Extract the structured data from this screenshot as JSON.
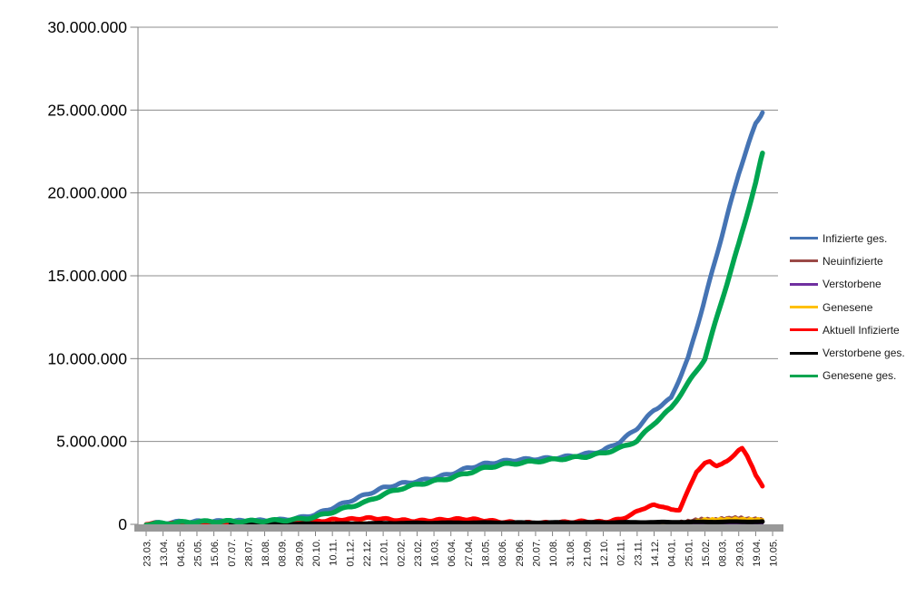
{
  "chart_data": {
    "type": "line",
    "title": "",
    "xlabel": "",
    "ylabel": "",
    "unit": "persons, values in millions",
    "ylim": [
      0,
      30000000
    ],
    "grid": "horizontal",
    "legend_position": "right",
    "y_tick_labels": [
      "30.000.000",
      "25.000.000",
      "20.000.000",
      "15.000.000",
      "10.000.000",
      "5.000.000",
      "0"
    ],
    "categories": [
      "23.03.",
      "13.04.",
      "04.05.",
      "25.05.",
      "15.06.",
      "07.07.",
      "28.07.",
      "18.08.",
      "08.09.",
      "29.09.",
      "20.10.",
      "10.11.",
      "01.12.",
      "22.12.",
      "12.01.",
      "02.02.",
      "23.02.",
      "16.03.",
      "06.04.",
      "27.04.",
      "18.05.",
      "08.06.",
      "29.06.",
      "20.07.",
      "10.08.",
      "31.08.",
      "21.09.",
      "12.10.",
      "02.11.",
      "23.11.",
      "14.12.",
      "04.01.",
      "25.01.",
      "15.02.",
      "08.03.",
      "29.03.",
      "19.04.",
      "10.05."
    ],
    "series": [
      {
        "key": "infizierte",
        "name": "Infizierte ges.",
        "color": "#4574B4",
        "points": [
          [
            0,
            0.05
          ],
          [
            1,
            0.09
          ],
          [
            2,
            0.15
          ],
          [
            3,
            0.17
          ],
          [
            4,
            0.18
          ],
          [
            5,
            0.19
          ],
          [
            6,
            0.21
          ],
          [
            7,
            0.23
          ],
          [
            8,
            0.27
          ],
          [
            9,
            0.38
          ],
          [
            10,
            0.6
          ],
          [
            11,
            1.0
          ],
          [
            12,
            1.4
          ],
          [
            13,
            1.8
          ],
          [
            14,
            2.2
          ],
          [
            15,
            2.45
          ],
          [
            16,
            2.6
          ],
          [
            17,
            2.8
          ],
          [
            18,
            3.05
          ],
          [
            19,
            3.4
          ],
          [
            20,
            3.65
          ],
          [
            21,
            3.8
          ],
          [
            22,
            3.9
          ],
          [
            23,
            3.95
          ],
          [
            24,
            4.0
          ],
          [
            25,
            4.1
          ],
          [
            26,
            4.25
          ],
          [
            27,
            4.45
          ],
          [
            28,
            5.0
          ],
          [
            29,
            5.8
          ],
          [
            30,
            6.9
          ],
          [
            31,
            7.6
          ],
          [
            32,
            10.0
          ],
          [
            33,
            13.6
          ],
          [
            34,
            17.4
          ],
          [
            35,
            21.2
          ],
          [
            36,
            24.2
          ],
          [
            36.4,
            24.85
          ]
        ]
      },
      {
        "key": "neuinfizierte",
        "name": "Neuinfizierte",
        "color": "#9B4A47",
        "points": [
          [
            0,
            0.01
          ],
          [
            4,
            0.01
          ],
          [
            8,
            0.015
          ],
          [
            10,
            0.04
          ],
          [
            12,
            0.06
          ],
          [
            13,
            0.065
          ],
          [
            14,
            0.05
          ],
          [
            16,
            0.03
          ],
          [
            18,
            0.05
          ],
          [
            19,
            0.055
          ],
          [
            20,
            0.04
          ],
          [
            22,
            0.02
          ],
          [
            24,
            0.025
          ],
          [
            26,
            0.04
          ],
          [
            28,
            0.08
          ],
          [
            29,
            0.1
          ],
          [
            30,
            0.13
          ],
          [
            31,
            0.09
          ],
          [
            32,
            0.2
          ],
          [
            32.5,
            0.3
          ],
          [
            33,
            0.34
          ],
          [
            33.5,
            0.3
          ],
          [
            34,
            0.36
          ],
          [
            34.5,
            0.41
          ],
          [
            35,
            0.42
          ],
          [
            35.3,
            0.38
          ],
          [
            35.7,
            0.34
          ],
          [
            36,
            0.35
          ],
          [
            36.4,
            0.3
          ]
        ]
      },
      {
        "key": "verstorbene",
        "name": "Verstorbene",
        "color": "#7030A0",
        "points": [
          [
            0,
            0.002
          ],
          [
            36.4,
            0.004
          ]
        ]
      },
      {
        "key": "genesene",
        "name": "Genesene",
        "color": "#FFC000",
        "points": [
          [
            0,
            0.01
          ],
          [
            4,
            0.01
          ],
          [
            8,
            0.015
          ],
          [
            10,
            0.03
          ],
          [
            12,
            0.05
          ],
          [
            13,
            0.055
          ],
          [
            14,
            0.045
          ],
          [
            16,
            0.03
          ],
          [
            18,
            0.045
          ],
          [
            19,
            0.05
          ],
          [
            20,
            0.035
          ],
          [
            22,
            0.02
          ],
          [
            24,
            0.02
          ],
          [
            26,
            0.03
          ],
          [
            28,
            0.05
          ],
          [
            29,
            0.08
          ],
          [
            30,
            0.1
          ],
          [
            31,
            0.09
          ],
          [
            32,
            0.12
          ],
          [
            33,
            0.28
          ],
          [
            34,
            0.3
          ],
          [
            34.5,
            0.32
          ],
          [
            35,
            0.33
          ],
          [
            35.5,
            0.3
          ],
          [
            36,
            0.3
          ],
          [
            36.4,
            0.27
          ]
        ]
      },
      {
        "key": "aktuell",
        "name": "Aktuell Infizierte",
        "color": "#FF0000",
        "points": [
          [
            0,
            0.05
          ],
          [
            0.5,
            0.05
          ],
          [
            1,
            0.04
          ],
          [
            2,
            0.03
          ],
          [
            3,
            0.02
          ],
          [
            4,
            0.015
          ],
          [
            5,
            0.015
          ],
          [
            6,
            0.02
          ],
          [
            7,
            0.03
          ],
          [
            8,
            0.05
          ],
          [
            9,
            0.09
          ],
          [
            10,
            0.16
          ],
          [
            11,
            0.28
          ],
          [
            12,
            0.3
          ],
          [
            12.7,
            0.36
          ],
          [
            13.3,
            0.38
          ],
          [
            14,
            0.33
          ],
          [
            15,
            0.25
          ],
          [
            16,
            0.21
          ],
          [
            17,
            0.25
          ],
          [
            18,
            0.3
          ],
          [
            18.7,
            0.32
          ],
          [
            19.3,
            0.3
          ],
          [
            20,
            0.24
          ],
          [
            21,
            0.15
          ],
          [
            22,
            0.1
          ],
          [
            23,
            0.08
          ],
          [
            24,
            0.09
          ],
          [
            25,
            0.14
          ],
          [
            25.7,
            0.17
          ],
          [
            26.3,
            0.16
          ],
          [
            27,
            0.14
          ],
          [
            28,
            0.3
          ],
          [
            28.7,
            0.6
          ],
          [
            29.3,
            0.95
          ],
          [
            30,
            1.15
          ],
          [
            30.5,
            1.1
          ],
          [
            31,
            0.85
          ],
          [
            31.5,
            0.9
          ],
          [
            32,
            2.0
          ],
          [
            32.5,
            3.2
          ],
          [
            33,
            3.65
          ],
          [
            33.3,
            3.8
          ],
          [
            33.7,
            3.55
          ],
          [
            34,
            3.6
          ],
          [
            34.3,
            3.8
          ],
          [
            34.6,
            4.1
          ],
          [
            35,
            4.45
          ],
          [
            35.2,
            4.55
          ],
          [
            35.5,
            4.15
          ],
          [
            35.8,
            3.5
          ],
          [
            36,
            2.95
          ],
          [
            36.2,
            2.6
          ],
          [
            36.4,
            2.3
          ]
        ]
      },
      {
        "key": "verstorbene_ges",
        "name": "Verstorbene ges.",
        "color": "#000000",
        "points": [
          [
            5,
            0.02
          ],
          [
            8,
            0.025
          ],
          [
            10,
            0.03
          ],
          [
            12,
            0.04
          ],
          [
            13,
            0.05
          ],
          [
            14,
            0.065
          ],
          [
            16,
            0.08
          ],
          [
            18,
            0.09
          ],
          [
            20,
            0.1
          ],
          [
            22,
            0.1
          ],
          [
            24,
            0.105
          ],
          [
            26,
            0.11
          ],
          [
            28,
            0.115
          ],
          [
            30,
            0.125
          ],
          [
            32,
            0.135
          ],
          [
            34,
            0.15
          ],
          [
            36.4,
            0.16
          ]
        ]
      },
      {
        "key": "genesene_ges",
        "name": "Genesene ges.",
        "color": "#00A550",
        "points": [
          [
            0,
            0.02
          ],
          [
            1,
            0.05
          ],
          [
            2,
            0.11
          ],
          [
            3,
            0.15
          ],
          [
            4,
            0.17
          ],
          [
            5,
            0.18
          ],
          [
            6,
            0.19
          ],
          [
            7,
            0.21
          ],
          [
            8,
            0.24
          ],
          [
            9,
            0.3
          ],
          [
            10,
            0.45
          ],
          [
            11,
            0.75
          ],
          [
            12,
            1.05
          ],
          [
            13,
            1.35
          ],
          [
            14,
            1.8
          ],
          [
            15,
            2.15
          ],
          [
            16,
            2.4
          ],
          [
            17,
            2.6
          ],
          [
            18,
            2.8
          ],
          [
            19,
            3.1
          ],
          [
            20,
            3.4
          ],
          [
            21,
            3.6
          ],
          [
            22,
            3.7
          ],
          [
            23,
            3.8
          ],
          [
            24,
            3.9
          ],
          [
            25,
            4.0
          ],
          [
            26,
            4.1
          ],
          [
            27,
            4.3
          ],
          [
            28,
            4.6
          ],
          [
            29,
            5.05
          ],
          [
            30,
            6.1
          ],
          [
            31,
            7.0
          ],
          [
            32,
            8.5
          ],
          [
            33,
            10.0
          ],
          [
            34,
            13.5
          ],
          [
            35,
            16.9
          ],
          [
            36,
            20.6
          ],
          [
            36.4,
            22.4
          ]
        ]
      }
    ],
    "colors": {
      "gridline": "#8C8C8C",
      "axis_line": "#808080",
      "x_axis_band": "#999999",
      "tick_label": "#1a1a1a"
    }
  }
}
